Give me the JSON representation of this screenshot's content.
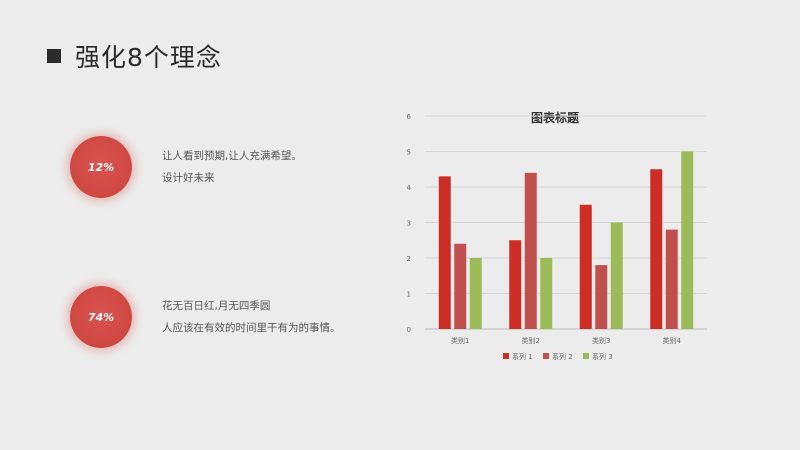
{
  "slide": {
    "title": "强化8个理念"
  },
  "stats": [
    {
      "value": "12%",
      "lines": [
        "让人看到预期,让人充满希望。",
        "设计好未来"
      ]
    },
    {
      "value": "74%",
      "lines": [
        "花无百日红,月无四季圆",
        "人应该在有效的时间里干有为的事情。"
      ]
    }
  ],
  "chart_data": {
    "type": "bar",
    "title": "图表标题",
    "categories": [
      "类别1",
      "类别2",
      "类别3",
      "类别4"
    ],
    "series": [
      {
        "name": "系列 1",
        "values": [
          4.3,
          2.5,
          3.5,
          4.5
        ],
        "color": "#cc2e26"
      },
      {
        "name": "系列 2",
        "values": [
          2.4,
          4.4,
          1.8,
          2.8
        ],
        "color": "#c0504d"
      },
      {
        "name": "系列 3",
        "values": [
          2.0,
          2.0,
          3.0,
          5.0
        ],
        "color": "#9bbb59"
      }
    ],
    "yticks": [
      "0",
      "1",
      "2",
      "3",
      "4",
      "5",
      "6"
    ],
    "ylim": [
      0,
      6
    ],
    "grid": true,
    "legend_position": "bottom"
  }
}
